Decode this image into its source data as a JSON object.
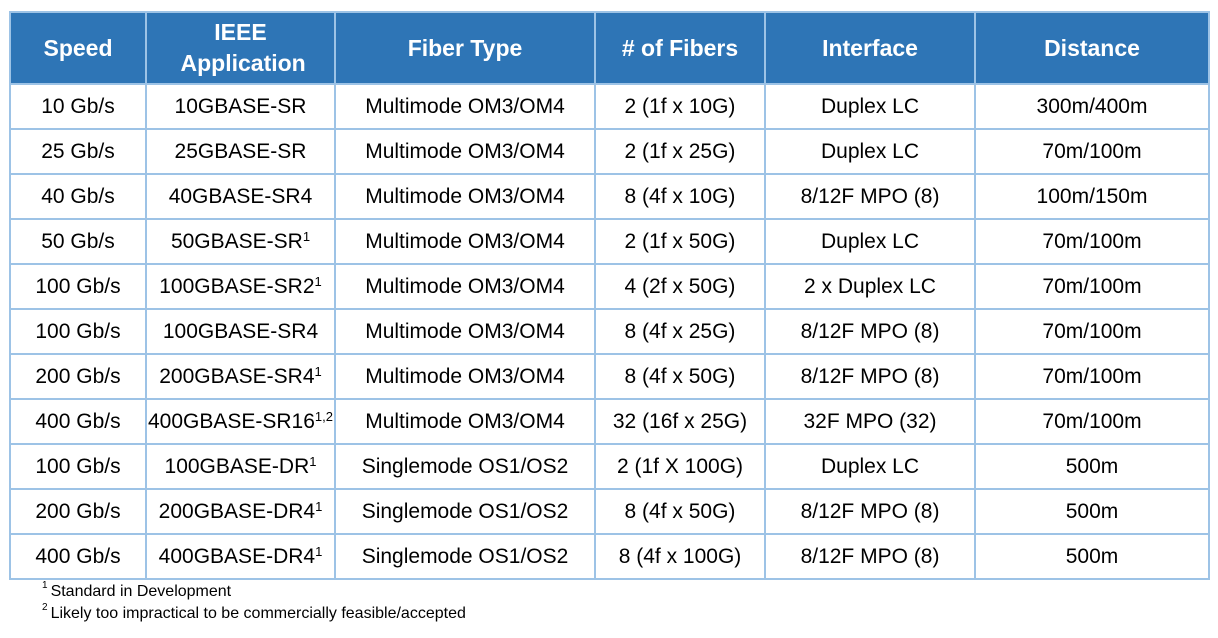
{
  "table": {
    "headers": [
      "Speed",
      "IEEE Application",
      "Fiber Type",
      "# of Fibers",
      "Interface",
      "Distance"
    ],
    "rows": [
      {
        "speed": "10 Gb/s",
        "app": "10GBASE-SR",
        "sup": "",
        "fiber": "Multimode OM3/OM4",
        "fibers": "2 (1f x 10G)",
        "interface": "Duplex LC",
        "distance": "300m/400m"
      },
      {
        "speed": "25 Gb/s",
        "app": "25GBASE-SR",
        "sup": "",
        "fiber": "Multimode OM3/OM4",
        "fibers": "2 (1f x 25G)",
        "interface": "Duplex LC",
        "distance": "70m/100m"
      },
      {
        "speed": "40 Gb/s",
        "app": "40GBASE-SR4",
        "sup": "",
        "fiber": "Multimode OM3/OM4",
        "fibers": "8 (4f x 10G)",
        "interface": "8/12F MPO (8)",
        "distance": "100m/150m"
      },
      {
        "speed": "50 Gb/s",
        "app": "50GBASE-SR",
        "sup": "1",
        "fiber": "Multimode OM3/OM4",
        "fibers": "2 (1f x 50G)",
        "interface": "Duplex LC",
        "distance": "70m/100m"
      },
      {
        "speed": "100 Gb/s",
        "app": "100GBASE-SR2",
        "sup": "1",
        "fiber": "Multimode OM3/OM4",
        "fibers": "4 (2f x 50G)",
        "interface": "2 x Duplex LC",
        "distance": "70m/100m"
      },
      {
        "speed": "100 Gb/s",
        "app": "100GBASE-SR4",
        "sup": "",
        "fiber": "Multimode OM3/OM4",
        "fibers": "8 (4f x 25G)",
        "interface": "8/12F MPO (8)",
        "distance": "70m/100m"
      },
      {
        "speed": "200 Gb/s",
        "app": "200GBASE-SR4",
        "sup": "1",
        "fiber": "Multimode OM3/OM4",
        "fibers": "8 (4f x 50G)",
        "interface": "8/12F MPO (8)",
        "distance": "70m/100m"
      },
      {
        "speed": "400 Gb/s",
        "app": "400GBASE-SR16",
        "sup": "1,2",
        "fiber": "Multimode OM3/OM4",
        "fibers": "32 (16f x 25G)",
        "interface": "32F MPO (32)",
        "distance": "70m/100m"
      },
      {
        "speed": "100 Gb/s",
        "app": "100GBASE-DR",
        "sup": "1",
        "fiber": "Singlemode OS1/OS2",
        "fibers": "2 (1f X 100G)",
        "interface": "Duplex LC",
        "distance": "500m"
      },
      {
        "speed": "200 Gb/s",
        "app": "200GBASE-DR4",
        "sup": "1",
        "fiber": "Singlemode OS1/OS2",
        "fibers": "8 (4f x 50G)",
        "interface": "8/12F MPO (8)",
        "distance": "500m"
      },
      {
        "speed": "400 Gb/s",
        "app": "400GBASE-DR4",
        "sup": "1",
        "fiber": "Singlemode OS1/OS2",
        "fibers": "8 (4f x 100G)",
        "interface": "8/12F MPO (8)",
        "distance": "500m"
      }
    ]
  },
  "footnotes": [
    {
      "mark": "1",
      "text": "Standard in Development"
    },
    {
      "mark": "2",
      "text": "Likely too impractical to be commercially feasible/accepted"
    }
  ],
  "colors": {
    "header_bg": "#2E75B6",
    "header_text": "#FFFFFF",
    "grid": "#9DC3E6"
  }
}
